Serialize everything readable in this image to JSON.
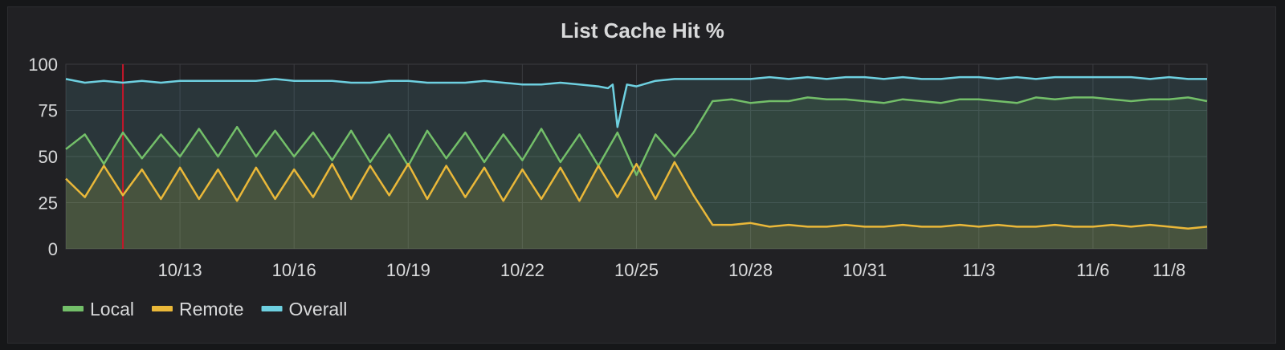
{
  "chart_data": {
    "type": "line",
    "title": "List Cache Hit %",
    "xlabel": "",
    "ylabel": "",
    "ylim": [
      0,
      100
    ],
    "y_ticks": [
      0,
      25,
      50,
      75,
      100
    ],
    "x_range": [
      "10/10",
      "11/9"
    ],
    "x_ticks": [
      "10/13",
      "10/16",
      "10/19",
      "10/22",
      "10/25",
      "10/28",
      "10/31",
      "11/3",
      "11/6",
      "11/8"
    ],
    "grid": true,
    "legend_position": "bottom-left",
    "marker_line": {
      "date": "10/11 12:00",
      "color": "#c4162a"
    },
    "series": [
      {
        "name": "Local",
        "color": "#73bf69",
        "fill": true,
        "x": [
          "10/10",
          "10/10 12:00",
          "10/11",
          "10/11 12:00",
          "10/12",
          "10/12 12:00",
          "10/13",
          "10/13 12:00",
          "10/14",
          "10/14 12:00",
          "10/15",
          "10/15 12:00",
          "10/16",
          "10/16 12:00",
          "10/17",
          "10/17 12:00",
          "10/18",
          "10/18 12:00",
          "10/19",
          "10/19 12:00",
          "10/20",
          "10/20 12:00",
          "10/21",
          "10/21 12:00",
          "10/22",
          "10/22 12:00",
          "10/23",
          "10/23 12:00",
          "10/24",
          "10/24 12:00",
          "10/25",
          "10/25 12:00",
          "10/26",
          "10/26 12:00",
          "10/27",
          "10/27 12:00",
          "10/28",
          "10/28 12:00",
          "10/29",
          "10/29 12:00",
          "10/30",
          "10/30 12:00",
          "10/31",
          "10/31 12:00",
          "11/1",
          "11/1 12:00",
          "11/2",
          "11/2 12:00",
          "11/3",
          "11/3 12:00",
          "11/4",
          "11/4 12:00",
          "11/5",
          "11/5 12:00",
          "11/6",
          "11/6 12:00",
          "11/7",
          "11/7 12:00",
          "11/8",
          "11/8 12:00",
          "11/9"
        ],
        "values": [
          54,
          62,
          46,
          63,
          49,
          62,
          50,
          65,
          50,
          66,
          50,
          64,
          50,
          63,
          48,
          64,
          47,
          62,
          45,
          64,
          49,
          63,
          47,
          62,
          48,
          65,
          47,
          62,
          45,
          63,
          40,
          62,
          50,
          63,
          80,
          81,
          79,
          80,
          80,
          82,
          81,
          81,
          80,
          79,
          81,
          80,
          79,
          81,
          81,
          80,
          79,
          82,
          81,
          82,
          82,
          81,
          80,
          81,
          81,
          82,
          80
        ]
      },
      {
        "name": "Remote",
        "color": "#eab839",
        "fill": true,
        "x": [
          "10/10",
          "10/10 12:00",
          "10/11",
          "10/11 12:00",
          "10/12",
          "10/12 12:00",
          "10/13",
          "10/13 12:00",
          "10/14",
          "10/14 12:00",
          "10/15",
          "10/15 12:00",
          "10/16",
          "10/16 12:00",
          "10/17",
          "10/17 12:00",
          "10/18",
          "10/18 12:00",
          "10/19",
          "10/19 12:00",
          "10/20",
          "10/20 12:00",
          "10/21",
          "10/21 12:00",
          "10/22",
          "10/22 12:00",
          "10/23",
          "10/23 12:00",
          "10/24",
          "10/24 12:00",
          "10/25",
          "10/25 12:00",
          "10/26",
          "10/26 12:00",
          "10/27",
          "10/27 12:00",
          "10/28",
          "10/28 12:00",
          "10/29",
          "10/29 12:00",
          "10/30",
          "10/30 12:00",
          "10/31",
          "10/31 12:00",
          "11/1",
          "11/1 12:00",
          "11/2",
          "11/2 12:00",
          "11/3",
          "11/3 12:00",
          "11/4",
          "11/4 12:00",
          "11/5",
          "11/5 12:00",
          "11/6",
          "11/6 12:00",
          "11/7",
          "11/7 12:00",
          "11/8",
          "11/8 12:00",
          "11/9"
        ],
        "values": [
          38,
          28,
          45,
          29,
          43,
          27,
          44,
          27,
          43,
          26,
          44,
          27,
          43,
          28,
          46,
          27,
          45,
          29,
          46,
          27,
          45,
          28,
          44,
          26,
          43,
          27,
          44,
          26,
          45,
          28,
          46,
          27,
          47,
          29,
          13,
          13,
          14,
          12,
          13,
          12,
          12,
          13,
          12,
          12,
          13,
          12,
          12,
          13,
          12,
          13,
          12,
          12,
          13,
          12,
          12,
          13,
          12,
          13,
          12,
          11,
          12
        ]
      },
      {
        "name": "Overall",
        "color": "#6ed0e0",
        "fill": true,
        "x": [
          "10/10",
          "10/10 12:00",
          "10/11",
          "10/11 12:00",
          "10/12",
          "10/12 12:00",
          "10/13",
          "10/13 12:00",
          "10/14",
          "10/14 12:00",
          "10/15",
          "10/15 12:00",
          "10/16",
          "10/16 12:00",
          "10/17",
          "10/17 12:00",
          "10/18",
          "10/18 12:00",
          "10/19",
          "10/19 12:00",
          "10/20",
          "10/20 12:00",
          "10/21",
          "10/21 12:00",
          "10/22",
          "10/22 12:00",
          "10/23",
          "10/23 12:00",
          "10/24",
          "10/24 06:00",
          "10/24 09:00",
          "10/24 12:00",
          "10/24 18:00",
          "10/25",
          "10/25 12:00",
          "10/26",
          "10/26 12:00",
          "10/27",
          "10/27 12:00",
          "10/28",
          "10/28 12:00",
          "10/29",
          "10/29 12:00",
          "10/30",
          "10/30 12:00",
          "10/31",
          "10/31 12:00",
          "11/1",
          "11/1 12:00",
          "11/2",
          "11/2 12:00",
          "11/3",
          "11/3 12:00",
          "11/4",
          "11/4 12:00",
          "11/5",
          "11/5 12:00",
          "11/6",
          "11/6 12:00",
          "11/7",
          "11/7 12:00",
          "11/8",
          "11/8 12:00",
          "11/9"
        ],
        "values": [
          92,
          90,
          91,
          90,
          91,
          90,
          91,
          91,
          91,
          91,
          91,
          92,
          91,
          91,
          91,
          90,
          90,
          91,
          91,
          90,
          90,
          90,
          91,
          90,
          89,
          89,
          90,
          89,
          88,
          87,
          89,
          66,
          89,
          88,
          91,
          92,
          92,
          92,
          92,
          92,
          93,
          92,
          93,
          92,
          93,
          93,
          92,
          93,
          92,
          92,
          93,
          93,
          92,
          93,
          92,
          93,
          93,
          93,
          93,
          93,
          92,
          93,
          92,
          92
        ]
      }
    ]
  }
}
